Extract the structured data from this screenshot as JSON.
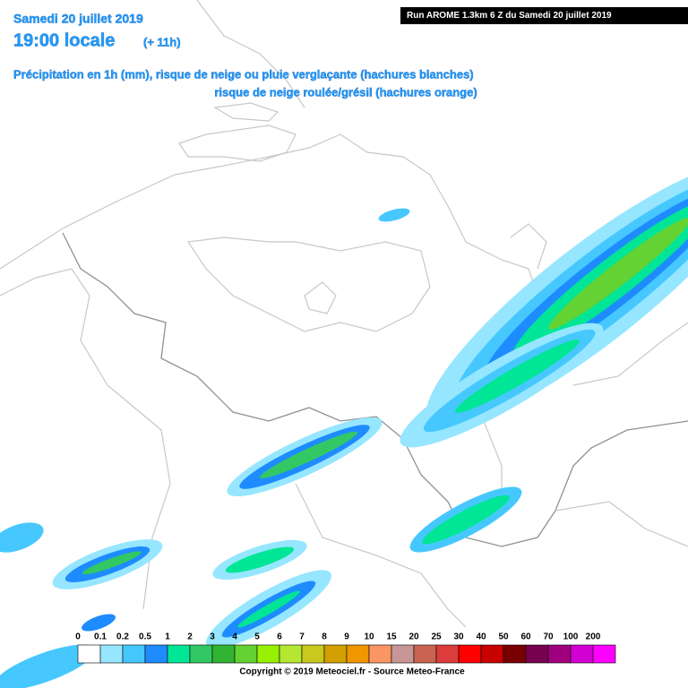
{
  "header": {
    "date": "Samedi 20 juillet 2019",
    "time": "19:00 locale",
    "offset": "(+ 11h)",
    "run": "Run AROME 1.3km 6 Z du Samedi 20 juillet 2019",
    "description": [
      "Précipitation en 1h (mm), risque de neige ou pluie verglaçante (hachures blanches)",
      "risque de neige roulée/grésil (hachures orange)"
    ]
  },
  "legend": {
    "labels": [
      "0",
      "0.1",
      "0.2",
      "0.5",
      "1",
      "2",
      "3",
      "4",
      "5",
      "6",
      "7",
      "8",
      "9",
      "10",
      "15",
      "20",
      "25",
      "30",
      "40",
      "50",
      "60",
      "70",
      "100",
      "200"
    ],
    "colors": [
      "#ffffff",
      "#96e6ff",
      "#46c8ff",
      "#1e8cff",
      "#00e696",
      "#32c864",
      "#32b432",
      "#64d232",
      "#96f000",
      "#b4e632",
      "#c8c81e",
      "#d2a000",
      "#f09600",
      "#fa9664",
      "#c89696",
      "#c86450",
      "#dc3c3c",
      "#ff0000",
      "#c80000",
      "#780000",
      "#780050",
      "#a0007e",
      "#d200d2",
      "#ff00ff"
    ]
  },
  "copyright": "Copyright © 2019 Meteociel.fr - Source Meteo-France"
}
